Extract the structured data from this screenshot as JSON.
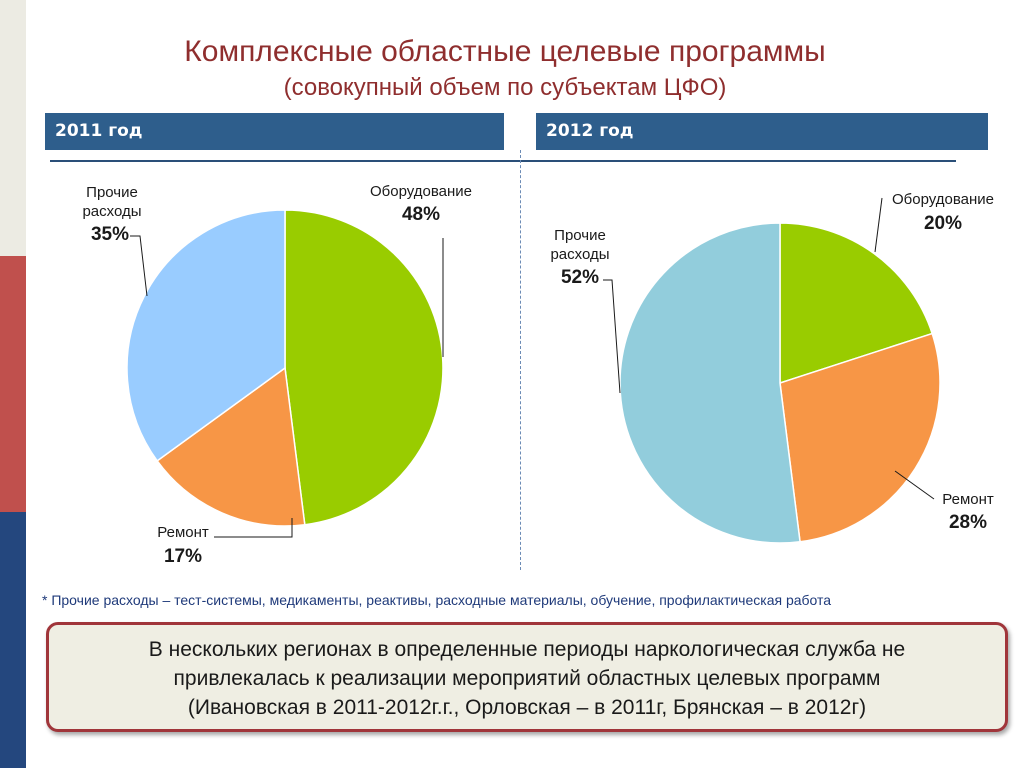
{
  "title": "Комплексные областные целевые программы",
  "subtitle": "(совокупный объем по субъектам ЦФО)",
  "colors": {
    "title": "#8f2e2e",
    "year_bar": "#2e5e8c",
    "equipment": "#99cc00",
    "repair": "#f79646",
    "other_2011": "#99ccff",
    "other_2012": "#92cddc",
    "strip_red": "#c0504d",
    "strip_blue": "#24477e"
  },
  "footnote": "* Прочие расходы – тест-системы, медикаменты, реактивы, расходные материалы, обучение,  профилактическая работа",
  "note": [
    "В нескольких регионах в определенные периоды наркологическая служба не",
    "привлекалась к реализации мероприятий  областных целевых программ",
    "(Ивановская в 2011-2012г.г., Орловская – в 2011г, Брянская – в 2012г)"
  ],
  "chart_data": [
    {
      "type": "pie",
      "title": "2011 год",
      "slices": [
        {
          "label": "Оборудование",
          "value": 48,
          "display": "48%",
          "color": "#99cc00"
        },
        {
          "label": "Ремонт",
          "value": 17,
          "display": "17%",
          "color": "#f79646"
        },
        {
          "label": "Прочие расходы",
          "value": 35,
          "display": "35%",
          "color": "#99ccff"
        }
      ]
    },
    {
      "type": "pie",
      "title": "2012 год",
      "slices": [
        {
          "label": "Оборудование",
          "value": 20,
          "display": "20%",
          "color": "#99cc00"
        },
        {
          "label": "Ремонт",
          "value": 28,
          "display": "28%",
          "color": "#f79646"
        },
        {
          "label": "Прочие расходы",
          "value": 52,
          "display": "52%",
          "color": "#92cddc"
        }
      ]
    }
  ]
}
